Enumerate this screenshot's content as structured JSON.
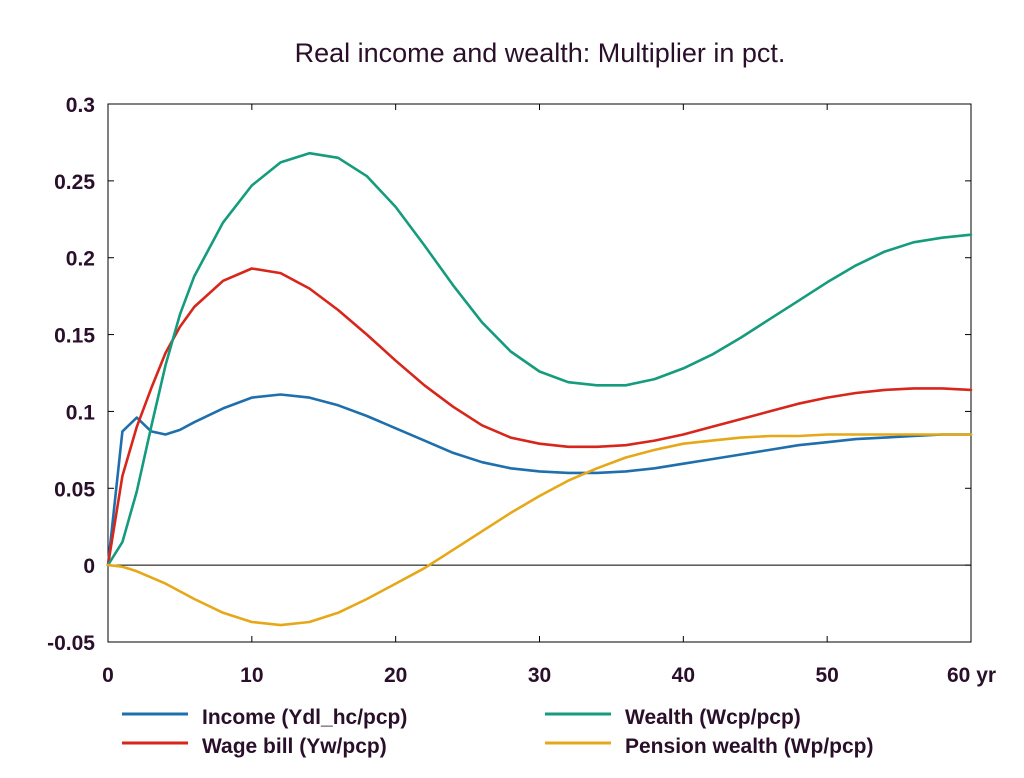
{
  "chart_data": {
    "type": "line",
    "title": "Real income and wealth: Multiplier in pct.",
    "xlabel": "",
    "ylabel": "",
    "x_unit_label": "yr",
    "xlim": [
      0,
      60
    ],
    "ylim": [
      -0.05,
      0.3
    ],
    "x_ticks": [
      "0",
      "10",
      "20",
      "30",
      "40",
      "50",
      "60 yr"
    ],
    "y_ticks": [
      "-0.05",
      "0",
      "0.05",
      "0.1",
      "0.15",
      "0.2",
      "0.25",
      "0.3"
    ],
    "grid": false,
    "zero_line": true,
    "legend_position": "bottom",
    "series": [
      {
        "name": "Income (Ydl_hc/pcp)",
        "color": "#1f6fad",
        "x": [
          0,
          1,
          2,
          3,
          4,
          5,
          6,
          8,
          10,
          12,
          14,
          16,
          18,
          20,
          22,
          24,
          26,
          28,
          30,
          32,
          34,
          36,
          38,
          40,
          42,
          44,
          46,
          48,
          50,
          52,
          54,
          56,
          58,
          60
        ],
        "y": [
          0,
          0.087,
          0.096,
          0.087,
          0.085,
          0.088,
          0.093,
          0.102,
          0.109,
          0.111,
          0.109,
          0.104,
          0.097,
          0.089,
          0.081,
          0.073,
          0.067,
          0.063,
          0.061,
          0.06,
          0.06,
          0.061,
          0.063,
          0.066,
          0.069,
          0.072,
          0.075,
          0.078,
          0.08,
          0.082,
          0.083,
          0.084,
          0.085,
          0.085
        ]
      },
      {
        "name": "Wage bill (Yw/pcp)",
        "color": "#d7261b",
        "x": [
          0,
          1,
          2,
          3,
          4,
          5,
          6,
          8,
          10,
          12,
          14,
          16,
          18,
          20,
          22,
          24,
          26,
          28,
          30,
          32,
          34,
          36,
          38,
          40,
          42,
          44,
          46,
          48,
          50,
          52,
          54,
          56,
          58,
          60
        ],
        "y": [
          0,
          0.058,
          0.09,
          0.115,
          0.138,
          0.155,
          0.168,
          0.185,
          0.193,
          0.19,
          0.18,
          0.166,
          0.15,
          0.133,
          0.117,
          0.103,
          0.091,
          0.083,
          0.079,
          0.077,
          0.077,
          0.078,
          0.081,
          0.085,
          0.09,
          0.095,
          0.1,
          0.105,
          0.109,
          0.112,
          0.114,
          0.115,
          0.115,
          0.114
        ]
      },
      {
        "name": "Wealth (Wcp/pcp)",
        "color": "#159b7d",
        "x": [
          0,
          1,
          2,
          3,
          4,
          5,
          6,
          8,
          10,
          12,
          14,
          16,
          18,
          20,
          22,
          24,
          26,
          28,
          30,
          32,
          34,
          36,
          38,
          40,
          42,
          44,
          46,
          48,
          50,
          52,
          54,
          56,
          58,
          60
        ],
        "y": [
          0,
          0.015,
          0.048,
          0.09,
          0.13,
          0.163,
          0.188,
          0.223,
          0.247,
          0.262,
          0.268,
          0.265,
          0.253,
          0.233,
          0.208,
          0.182,
          0.158,
          0.139,
          0.126,
          0.119,
          0.117,
          0.117,
          0.121,
          0.128,
          0.137,
          0.148,
          0.16,
          0.172,
          0.184,
          0.195,
          0.204,
          0.21,
          0.213,
          0.215
        ]
      },
      {
        "name": "Pension wealth (Wp/pcp)",
        "color": "#e6a818",
        "x": [
          0,
          1,
          2,
          4,
          6,
          8,
          10,
          12,
          14,
          16,
          18,
          20,
          22,
          24,
          26,
          28,
          30,
          32,
          34,
          36,
          38,
          40,
          42,
          44,
          46,
          48,
          50,
          52,
          54,
          56,
          58,
          60
        ],
        "y": [
          0,
          -0.001,
          -0.004,
          -0.012,
          -0.022,
          -0.031,
          -0.037,
          -0.039,
          -0.037,
          -0.031,
          -0.022,
          -0.012,
          -0.002,
          0.01,
          0.022,
          0.034,
          0.045,
          0.055,
          0.063,
          0.07,
          0.075,
          0.079,
          0.081,
          0.083,
          0.084,
          0.084,
          0.085,
          0.085,
          0.085,
          0.085,
          0.085,
          0.085
        ]
      }
    ]
  }
}
